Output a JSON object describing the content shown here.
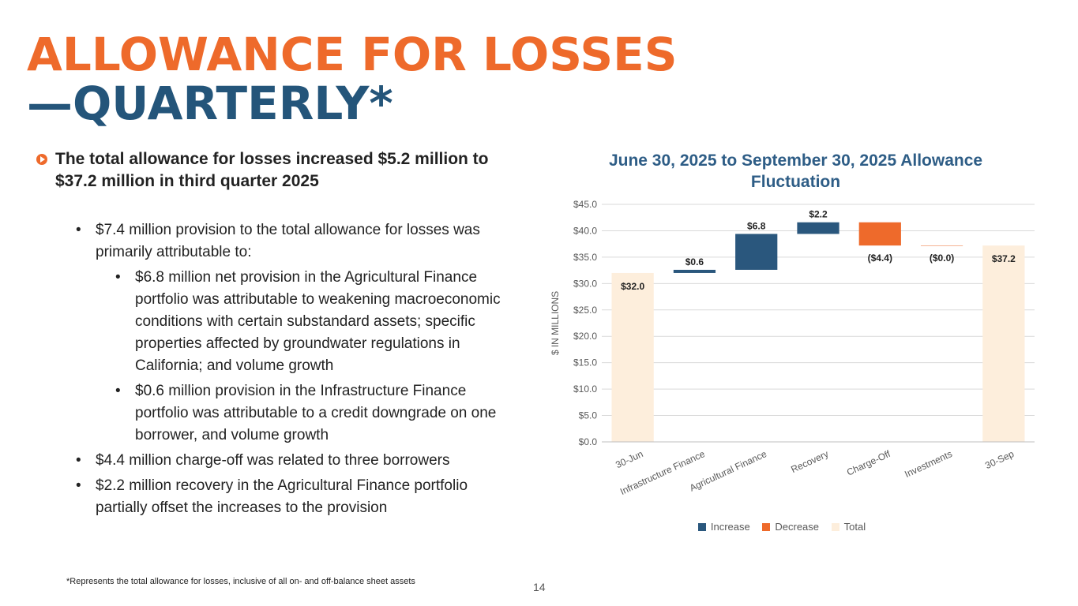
{
  "title": {
    "line1": "ALLOWANCE FOR LOSSES",
    "line2": "—QUARTERLY*"
  },
  "lead": "The total allowance for losses increased $5.2 million to $37.2 million in third quarter 2025",
  "bullets": [
    {
      "level": 1,
      "text": "$7.4 million provision to the total allowance for losses was primarily attributable to:"
    },
    {
      "level": 2,
      "text": "$6.8 million net provision in the Agricultural Finance portfolio was attributable to weakening macroeconomic conditions with certain substandard assets; specific properties affected by groundwater regulations in California; and volume growth"
    },
    {
      "level": 2,
      "text": "$0.6 million provision in the Infrastructure Finance portfolio was attributable to a credit downgrade on one borrower, and volume growth"
    },
    {
      "level": 1,
      "text": "$4.4 million charge-off was related to three borrowers"
    },
    {
      "level": 1,
      "text": "$2.2 million recovery in the Agricultural Finance portfolio partially offset the increases to the provision"
    }
  ],
  "bullet_symbol": "•",
  "footnote": "*Represents the total allowance for losses, inclusive of all on- and off-balance sheet assets",
  "page_number": "14",
  "colors": {
    "orange": "#EE6A2B",
    "navy": "#24557A",
    "increase": "#2A577D",
    "decrease": "#EE6A2B",
    "total": "#FDEEDC"
  },
  "chart_data": {
    "type": "bar",
    "subtype": "waterfall",
    "title": "June 30, 2025 to September 30, 2025 Allowance Fluctuation",
    "ylabel": "$ IN MILLIONS",
    "xlabel": "",
    "ylim": [
      0,
      45
    ],
    "yticks": [
      0,
      5,
      10,
      15,
      20,
      25,
      30,
      35,
      40,
      45
    ],
    "ytick_labels": [
      "$0.0",
      "$5.0",
      "$10.0",
      "$15.0",
      "$20.0",
      "$25.0",
      "$30.0",
      "$35.0",
      "$40.0",
      "$45.0"
    ],
    "categories": [
      "30-Jun",
      "Infrastructure Finance",
      "Agricultural Finance",
      "Recovery",
      "Charge-Off",
      "Investments",
      "30-Sep"
    ],
    "values": [
      32.0,
      0.6,
      6.8,
      2.2,
      -4.4,
      0.0,
      37.2
    ],
    "kinds": [
      "Total",
      "Increase",
      "Increase",
      "Increase",
      "Decrease",
      "Decrease",
      "Total"
    ],
    "data_labels": [
      "$32.0",
      "$0.6",
      "$6.8",
      "$2.2",
      "($4.4)",
      "($0.0)",
      "$37.2"
    ],
    "legend": [
      "Increase",
      "Decrease",
      "Total"
    ],
    "grid": true
  }
}
